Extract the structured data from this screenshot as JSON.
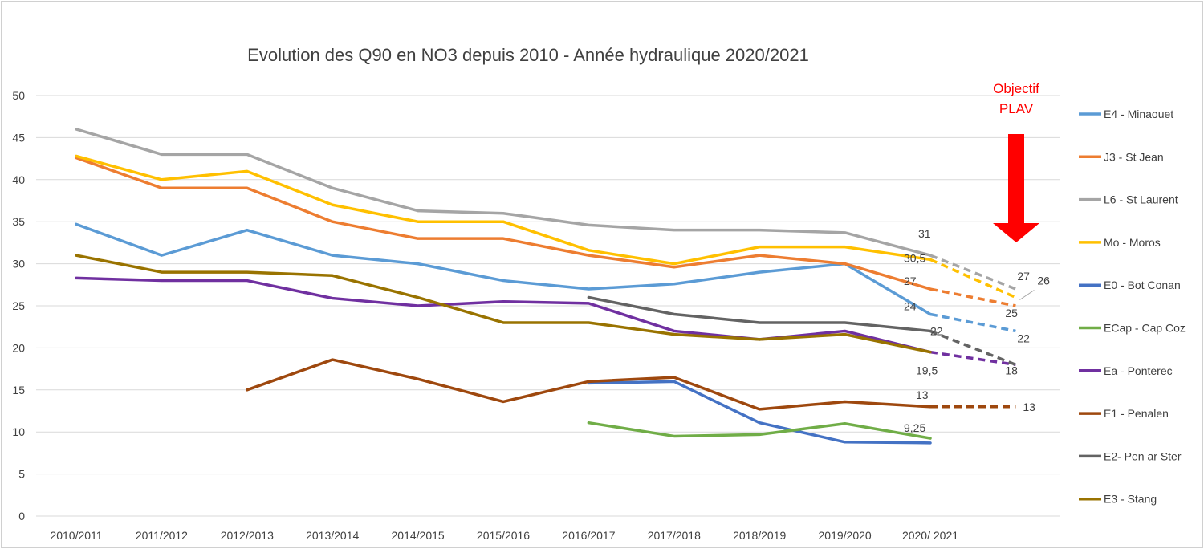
{
  "chart_data": {
    "type": "line",
    "title": "Evolution des Q90 en NO3 depuis 2010 - Année hydraulique 2020/2021",
    "xlabel": "",
    "ylabel": "",
    "categories": [
      "2010/2011",
      "2011/2012",
      "2012/2013",
      "2013/2014",
      "2014/2015",
      "2015/2016",
      "2016/2017",
      "2017/2018",
      "2018/2019",
      "2019/2020",
      "2020/ 2021"
    ],
    "ylim": [
      0,
      50
    ],
    "yticks": [
      "0",
      "5",
      "10",
      "15",
      "20",
      "25",
      "30",
      "35",
      "40",
      "45",
      "50"
    ],
    "grid": "horizontal",
    "legend_position": "right",
    "series": [
      {
        "name": "E4 - Minaouet",
        "color": "#5b9bd5",
        "values": [
          34.7,
          31,
          34,
          31,
          30,
          28,
          27,
          27.6,
          29,
          30,
          24
        ],
        "objective": 22
      },
      {
        "name": "J3 - St Jean",
        "color": "#ed7d31",
        "values": [
          42.6,
          39,
          39,
          35,
          33,
          33,
          31,
          29.6,
          31,
          30,
          27
        ],
        "objective": 25
      },
      {
        "name": "L6 - St Laurent",
        "color": "#a5a5a5",
        "values": [
          46,
          43,
          43,
          39,
          36.3,
          36,
          34.6,
          34,
          34,
          33.7,
          31
        ],
        "objective": 27
      },
      {
        "name": "Mo - Moros",
        "color": "#ffc000",
        "values": [
          42.8,
          40,
          41,
          37,
          35,
          35,
          31.6,
          30,
          32,
          32,
          30.5
        ],
        "objective": 26
      },
      {
        "name": "E0 - Bot Conan",
        "color": "#4472c4",
        "values": [
          null,
          null,
          null,
          null,
          null,
          null,
          15.8,
          16,
          11.1,
          8.8,
          8.7
        ],
        "objective": null
      },
      {
        "name": "ECap - Cap Coz",
        "color": "#70ad47",
        "values": [
          null,
          null,
          null,
          null,
          null,
          null,
          11.1,
          9.5,
          9.7,
          11,
          9.25
        ],
        "objective": null
      },
      {
        "name": "Ea - Ponterec",
        "color": "#7030a0",
        "values": [
          28.3,
          28,
          28,
          25.9,
          25,
          25.5,
          25.3,
          22,
          21,
          22,
          19.5
        ],
        "objective": 18
      },
      {
        "name": "E1 - Penalen",
        "color": "#9e480e",
        "values": [
          null,
          null,
          15,
          18.6,
          16.3,
          13.6,
          16,
          16.5,
          12.7,
          13.6,
          13
        ],
        "objective": 13
      },
      {
        "name": "E2- Pen ar Ster",
        "color": "#636363",
        "values": [
          null,
          null,
          null,
          null,
          null,
          null,
          26,
          24,
          23,
          23,
          22
        ],
        "objective": 18
      },
      {
        "name": "E3 - Stang",
        "color": "#997300",
        "values": [
          31,
          29,
          29,
          28.6,
          26,
          23,
          23,
          21.6,
          21,
          21.6,
          19.5
        ],
        "objective": null
      }
    ],
    "data_labels": [
      {
        "text": "31",
        "x": "2020/ 2021",
        "y": 31
      },
      {
        "text": "30,5",
        "x": "2020/ 2021",
        "y": 30.5
      },
      {
        "text": "27",
        "x": "2020/ 2021",
        "y": 27
      },
      {
        "text": "24",
        "x": "2020/ 2021",
        "y": 24
      },
      {
        "text": "22",
        "x": "2020/ 2021",
        "y": 22
      },
      {
        "text": "19,5",
        "x": "2020/ 2021",
        "y": 19.5
      },
      {
        "text": "13",
        "x": "2020/ 2021",
        "y": 13
      },
      {
        "text": "9,25",
        "x": "2020/ 2021",
        "y": 9.25
      },
      {
        "text": "27",
        "x": "objective",
        "y": 27
      },
      {
        "text": "26",
        "x": "objective",
        "y": 26
      },
      {
        "text": "25",
        "x": "objective",
        "y": 25
      },
      {
        "text": "22",
        "x": "objective",
        "y": 22
      },
      {
        "text": "18",
        "x": "objective",
        "y": 18
      },
      {
        "text": "13",
        "x": "objective",
        "y": 13
      }
    ],
    "annotation": {
      "line1": "Objectif",
      "line2": "PLAV",
      "arrow_color": "#ff0000"
    }
  }
}
